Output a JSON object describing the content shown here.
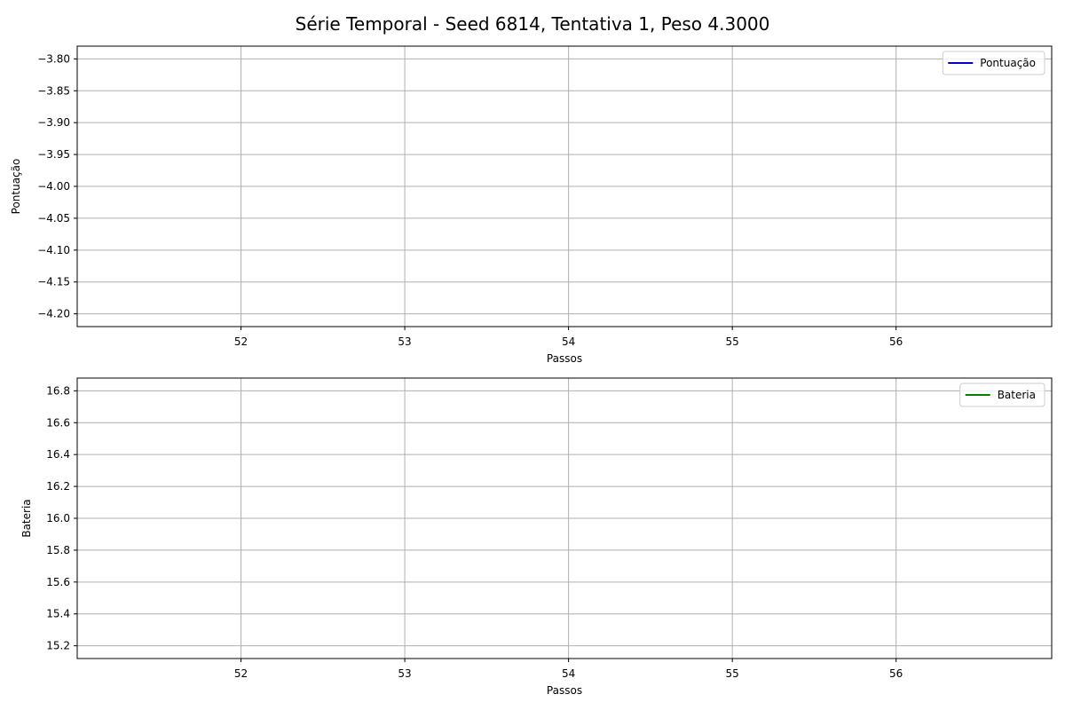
{
  "figure": {
    "title": "Série Temporal - Seed 6814, Tentativa 1, Peso 4.3000"
  },
  "chart_data": [
    {
      "type": "line",
      "title": "",
      "xlabel": "Passos",
      "ylabel": "Pontuação",
      "xlim": [
        51.0,
        56.95
      ],
      "ylim": [
        -4.22,
        -3.78
      ],
      "xticks": [
        52,
        53,
        54,
        55,
        56
      ],
      "xtick_labels": [
        "52",
        "53",
        "54",
        "55",
        "56"
      ],
      "yticks": [
        -3.8,
        -3.85,
        -3.9,
        -3.95,
        -4.0,
        -4.05,
        -4.1,
        -4.15,
        -4.2
      ],
      "ytick_labels": [
        "−3.80",
        "−3.85",
        "−3.90",
        "−3.95",
        "−4.00",
        "−4.05",
        "−4.10",
        "−4.15",
        "−4.20"
      ],
      "grid": true,
      "legend_position": "top-right",
      "series": [
        {
          "name": "Pontuação",
          "color": "#0000cc",
          "x": [],
          "y": []
        }
      ]
    },
    {
      "type": "line",
      "title": "",
      "xlabel": "Passos",
      "ylabel": "Bateria",
      "xlim": [
        51.0,
        56.95
      ],
      "ylim": [
        15.12,
        16.88
      ],
      "xticks": [
        52,
        53,
        54,
        55,
        56
      ],
      "xtick_labels": [
        "52",
        "53",
        "54",
        "55",
        "56"
      ],
      "yticks": [
        16.8,
        16.6,
        16.4,
        16.2,
        16.0,
        15.8,
        15.6,
        15.4,
        15.2
      ],
      "ytick_labels": [
        "16.8",
        "16.6",
        "16.4",
        "16.2",
        "16.0",
        "15.8",
        "15.6",
        "15.4",
        "15.2"
      ],
      "grid": true,
      "legend_position": "top-right",
      "series": [
        {
          "name": "Bateria",
          "color": "#008000",
          "x": [],
          "y": []
        }
      ]
    }
  ]
}
